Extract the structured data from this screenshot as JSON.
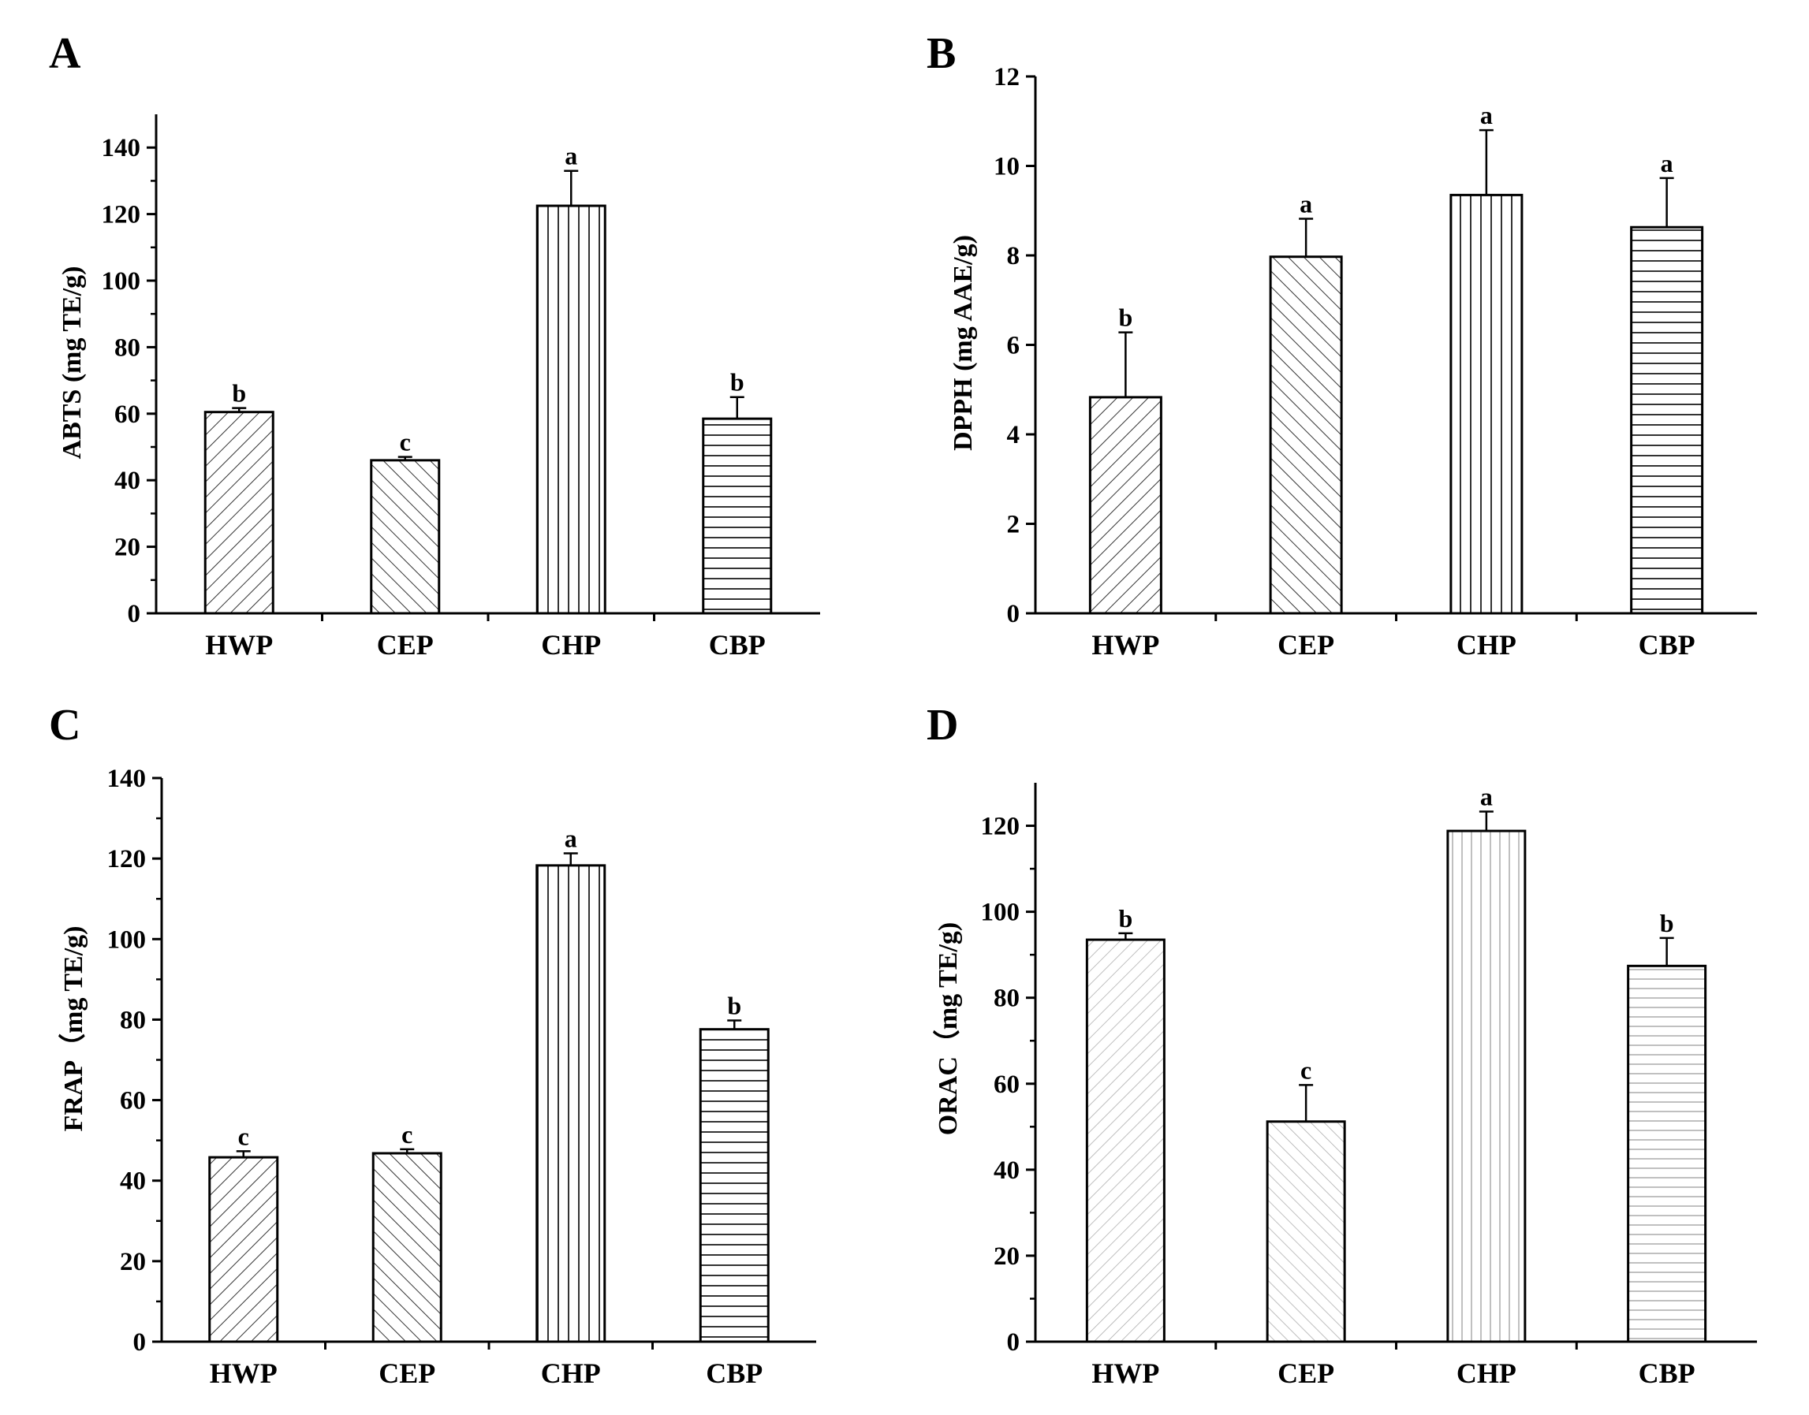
{
  "chart_data": [
    {
      "panel": "A",
      "type": "bar",
      "categories": [
        "HWP",
        "CEP",
        "CHP",
        "CBP"
      ],
      "values": [
        60.5,
        46,
        122.5,
        58.5
      ],
      "errors": [
        1.2,
        1.0,
        10.5,
        6.5
      ],
      "significance": [
        "b",
        "c",
        "a",
        "b"
      ],
      "ylabel": "ABTS (mg TE/g)",
      "xlabel": "",
      "ylim": [
        0,
        150
      ],
      "yticks": [
        0,
        20,
        40,
        60,
        80,
        100,
        120,
        140
      ],
      "patterns": [
        "diag-up",
        "diag-down",
        "vertical",
        "horizontal"
      ]
    },
    {
      "panel": "B",
      "type": "bar",
      "categories": [
        "HWP",
        "CEP",
        "CHP",
        "CBP"
      ],
      "values": [
        4.83,
        7.97,
        9.35,
        8.63
      ],
      "errors": [
        1.45,
        0.85,
        1.45,
        1.1
      ],
      "significance": [
        "b",
        "a",
        "a",
        "a"
      ],
      "ylabel": "DPPH (mg AAE/g)",
      "xlabel": "",
      "ylim": [
        0,
        12
      ],
      "yticks": [
        0,
        2,
        4,
        6,
        8,
        10,
        12
      ],
      "patterns": [
        "diag-up",
        "diag-down",
        "vertical",
        "horizontal"
      ]
    },
    {
      "panel": "C",
      "type": "bar",
      "categories": [
        "HWP",
        "CEP",
        "CHP",
        "CBP"
      ],
      "values": [
        45.8,
        46.8,
        118.3,
        77.6
      ],
      "errors": [
        1.5,
        1.0,
        3.0,
        2.2
      ],
      "significance": [
        "c",
        "c",
        "a",
        "b"
      ],
      "ylabel": "FRAP（mg TE/g)",
      "xlabel": "",
      "ylim": [
        0,
        140
      ],
      "yticks": [
        0,
        20,
        40,
        60,
        80,
        100,
        120,
        140
      ],
      "patterns": [
        "diag-up",
        "diag-down",
        "vertical",
        "horizontal"
      ]
    },
    {
      "panel": "D",
      "type": "bar",
      "categories": [
        "HWP",
        "CEP",
        "CHP",
        "CBP"
      ],
      "values": [
        93.5,
        51.2,
        118.8,
        87.4
      ],
      "errors": [
        1.5,
        8.5,
        4.5,
        6.5
      ],
      "significance": [
        "b",
        "c",
        "a",
        "b"
      ],
      "ylabel": "ORAC（mg TE/g)",
      "xlabel": "",
      "ylim": [
        0,
        130
      ],
      "yticks": [
        0,
        20,
        40,
        60,
        80,
        100,
        120
      ],
      "patterns": [
        "diag-up-light",
        "diag-down-light",
        "vertical-light",
        "horizontal-light"
      ]
    }
  ]
}
